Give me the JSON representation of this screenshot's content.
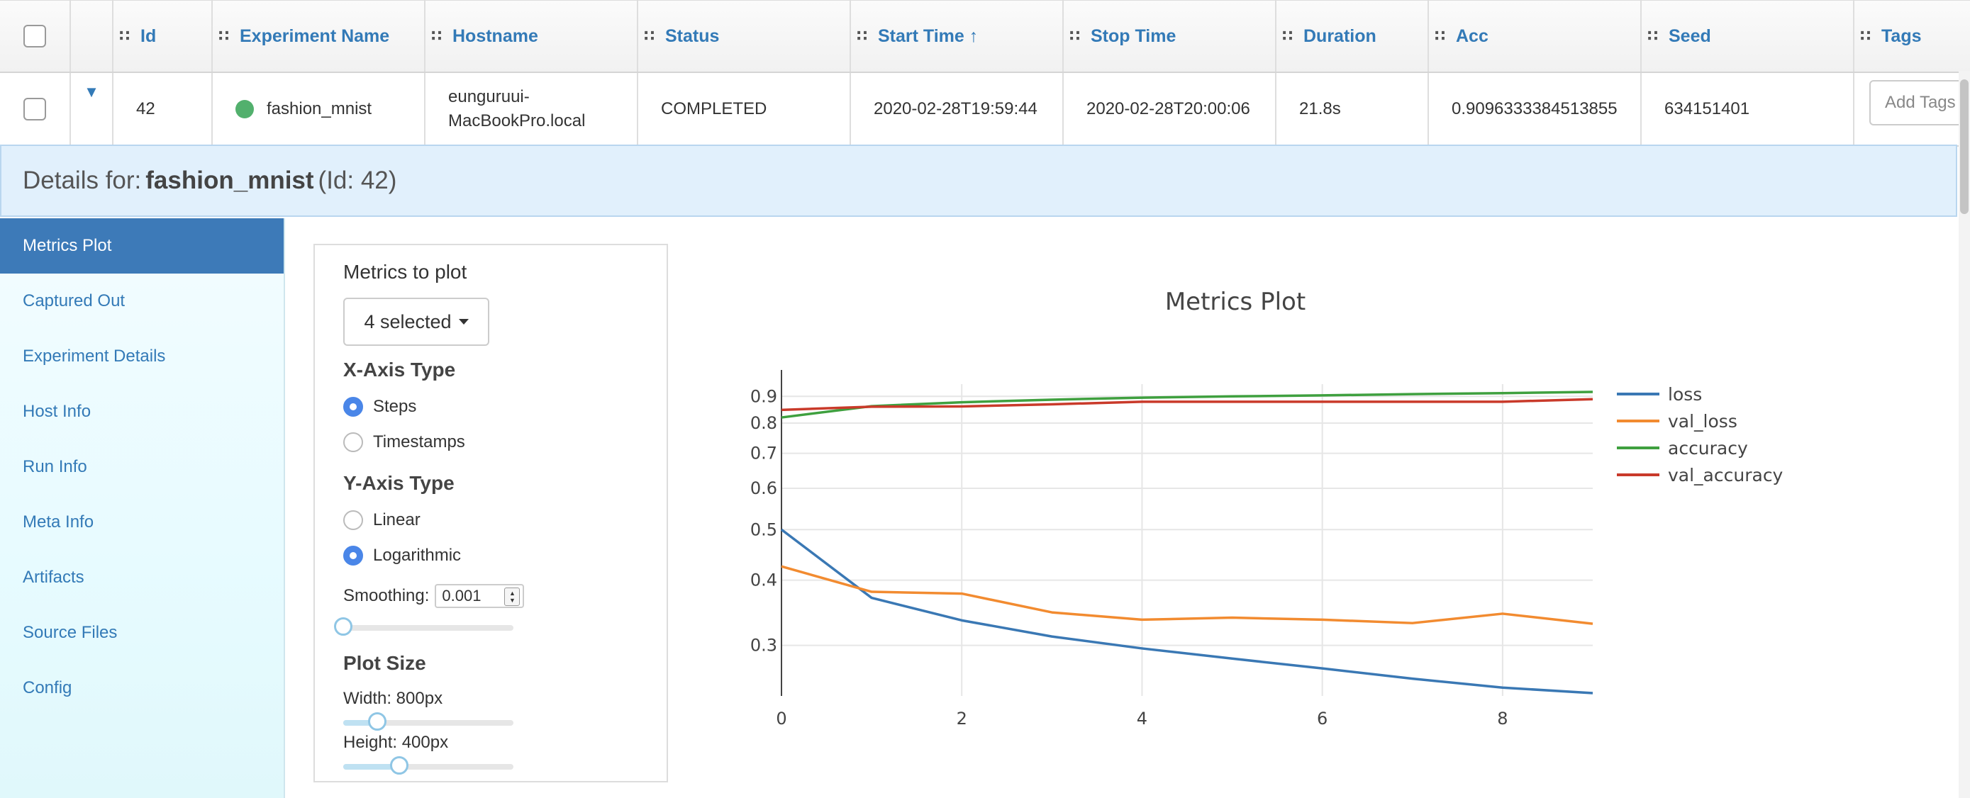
{
  "table": {
    "headers": [
      {
        "key": "id",
        "label": "Id"
      },
      {
        "key": "name",
        "label": "Experiment Name"
      },
      {
        "key": "host",
        "label": "Hostname"
      },
      {
        "key": "status",
        "label": "Status"
      },
      {
        "key": "start",
        "label": "Start Time ↑"
      },
      {
        "key": "stop",
        "label": "Stop Time"
      },
      {
        "key": "duration",
        "label": "Duration"
      },
      {
        "key": "acc",
        "label": "Acc"
      },
      {
        "key": "seed",
        "label": "Seed"
      },
      {
        "key": "tags",
        "label": "Tags"
      }
    ],
    "row": {
      "id": "42",
      "name": "fashion_mnist",
      "hostname_line1": "eunguruui-",
      "hostname_line2": "MacBookPro.local",
      "status": "COMPLETED",
      "start": "2020-02-28T19:59:44",
      "stop": "2020-02-28T20:00:06",
      "duration": "21.8s",
      "acc": "0.9096333384513855",
      "seed": "634151401",
      "tags_button": "Add Tags"
    },
    "status_color": "#52b06d"
  },
  "details": {
    "prefix": "Details for:",
    "name": "fashion_mnist",
    "suffix": "(Id: 42)"
  },
  "sidenav": {
    "items": [
      {
        "label": "Metrics Plot",
        "active": true
      },
      {
        "label": "Captured Out"
      },
      {
        "label": "Experiment Details"
      },
      {
        "label": "Host Info"
      },
      {
        "label": "Run Info"
      },
      {
        "label": "Meta Info"
      },
      {
        "label": "Artifacts"
      },
      {
        "label": "Source Files"
      },
      {
        "label": "Config"
      }
    ]
  },
  "controls": {
    "metrics_label": "Metrics to plot",
    "metrics_dropdown": "4 selected",
    "xaxis_label": "X-Axis Type",
    "xaxis_options": [
      {
        "label": "Steps",
        "selected": true
      },
      {
        "label": "Timestamps",
        "selected": false
      }
    ],
    "yaxis_label": "Y-Axis Type",
    "yaxis_options": [
      {
        "label": "Linear",
        "selected": false
      },
      {
        "label": "Logarithmic",
        "selected": true
      }
    ],
    "smoothing_label": "Smoothing:",
    "smoothing_value": "0.001",
    "smoothing_slider": 0.0,
    "plot_size_label": "Plot Size",
    "width_label": "Width: 800px",
    "width_slider": 0.2,
    "height_label": "Height: 400px",
    "height_slider": 0.33
  },
  "chart_data": {
    "type": "line",
    "title": "Metrics Plot",
    "x_scale": "linear",
    "y_scale": "log",
    "xlim": [
      0,
      9
    ],
    "ylim": [
      0.24,
      0.95
    ],
    "x_ticks": [
      0,
      2,
      4,
      6,
      8
    ],
    "y_ticks": [
      0.3,
      0.4,
      0.5,
      0.6,
      0.7,
      0.8,
      0.9
    ],
    "grid": true,
    "legend_position": "right",
    "x": [
      0,
      1,
      2,
      3,
      4,
      5,
      6,
      7,
      8,
      9
    ],
    "series": [
      {
        "name": "loss",
        "color": "#3a78b4",
        "values": [
          0.5,
          0.37,
          0.335,
          0.312,
          0.296,
          0.283,
          0.271,
          0.259,
          0.249,
          0.243
        ]
      },
      {
        "name": "val_loss",
        "color": "#f28b30",
        "values": [
          0.425,
          0.38,
          0.377,
          0.347,
          0.336,
          0.339,
          0.336,
          0.331,
          0.345,
          0.33
        ]
      },
      {
        "name": "accuracy",
        "color": "#3fa03f",
        "values": [
          0.82,
          0.862,
          0.877,
          0.887,
          0.895,
          0.9,
          0.904,
          0.909,
          0.913,
          0.918
        ]
      },
      {
        "name": "val_accuracy",
        "color": "#c93a2a",
        "values": [
          0.848,
          0.86,
          0.861,
          0.869,
          0.879,
          0.879,
          0.879,
          0.879,
          0.879,
          0.889
        ]
      }
    ]
  }
}
